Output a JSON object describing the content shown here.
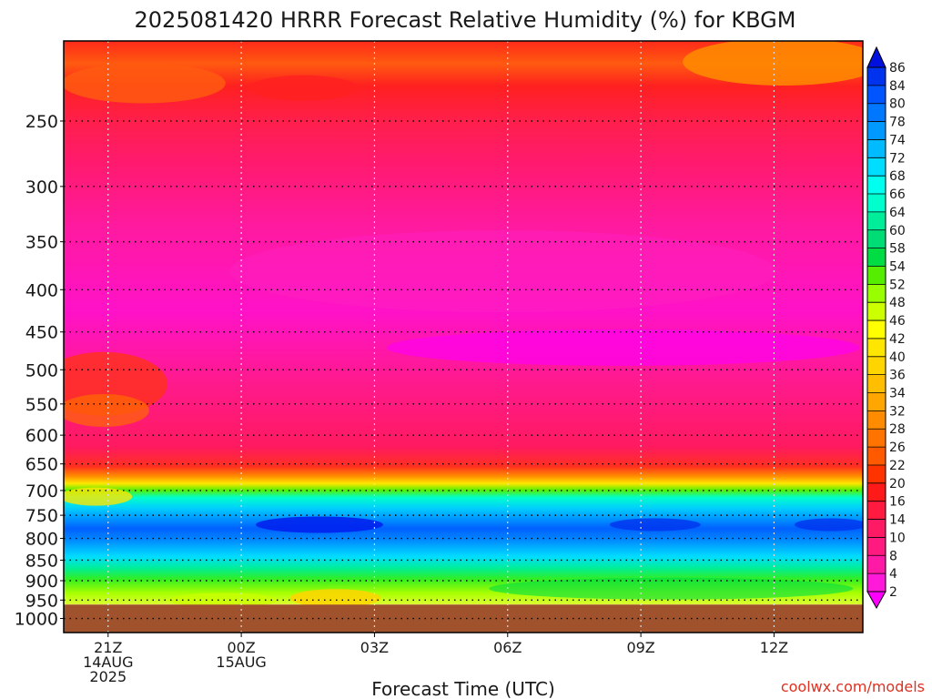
{
  "chart_data": {
    "type": "heatmap",
    "title": "2025081420 HRRR Forecast Relative Humidity (%) for KBGM",
    "xlabel": "Forecast Time (UTC)",
    "ylabel": "",
    "watermark": "coolwx.com/models",
    "x_ticks": [
      {
        "hour": -3,
        "lines": [
          "21Z",
          "14AUG",
          "2025"
        ]
      },
      {
        "hour": 0,
        "lines": [
          "00Z",
          "15AUG"
        ]
      },
      {
        "hour": 3,
        "lines": [
          "03Z"
        ]
      },
      {
        "hour": 6,
        "lines": [
          "06Z"
        ]
      },
      {
        "hour": 9,
        "lines": [
          "09Z"
        ]
      },
      {
        "hour": 12,
        "lines": [
          "12Z"
        ]
      }
    ],
    "xlim_hours": [
      -4,
      14
    ],
    "y_ticks": [
      250,
      300,
      350,
      400,
      450,
      500,
      550,
      600,
      650,
      700,
      750,
      800,
      850,
      900,
      950,
      1000
    ],
    "y_scale": "log",
    "ylim_hpa": [
      200,
      1040
    ],
    "ground_level_hpa": 962,
    "grid": "dotted",
    "colorbar": {
      "levels": [
        2,
        4,
        8,
        10,
        14,
        16,
        20,
        22,
        26,
        28,
        32,
        34,
        36,
        40,
        42,
        46,
        48,
        52,
        54,
        58,
        60,
        64,
        66,
        68,
        72,
        74,
        78,
        80,
        84,
        86
      ],
      "colors": [
        "#ff00ff",
        "#ff1ad9",
        "#ff1aa6",
        "#ff1a80",
        "#ff1a66",
        "#ff1a40",
        "#ff1a1a",
        "#ff3300",
        "#ff5a00",
        "#ff7300",
        "#ff8c00",
        "#ffa600",
        "#ffbf00",
        "#ffd500",
        "#ffe600",
        "#ffff00",
        "#ccff00",
        "#99ff00",
        "#55ee00",
        "#00dd44",
        "#00dd77",
        "#00ee99",
        "#00ffcc",
        "#00ffee",
        "#00ddff",
        "#00bbff",
        "#0099ff",
        "#0077ff",
        "#0055ff",
        "#0033ee",
        "#0011dd"
      ],
      "extend": "both"
    },
    "profile_summary": [
      {
        "from_hpa": 200,
        "to_hpa": 280,
        "rh": "16-26"
      },
      {
        "from_hpa": 280,
        "to_hpa": 640,
        "rh": "4-14"
      },
      {
        "from_hpa": 640,
        "to_hpa": 700,
        "rh": "20-46"
      },
      {
        "from_hpa": 700,
        "to_hpa": 830,
        "rh": "66-84"
      },
      {
        "from_hpa": 830,
        "to_hpa": 962,
        "rh": "46-66"
      }
    ]
  }
}
